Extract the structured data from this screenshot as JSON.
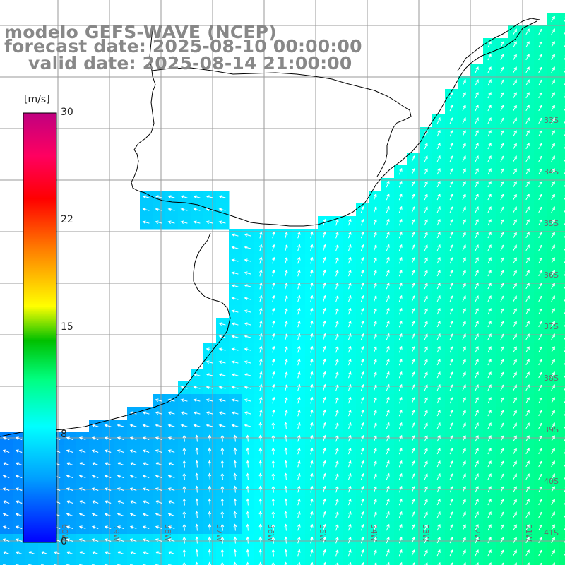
{
  "title": {
    "model": "modelo GEFS-WAVE (NCEP)",
    "forecast": "forecast date: 2025-08-10 00:00:00",
    "valid": "valid date: 2025-08-14 21:00:00"
  },
  "colorbar": {
    "units": "[m/s]",
    "ticks": [
      "30",
      "22",
      "15",
      "8",
      "0"
    ],
    "range": [
      0,
      30
    ],
    "colors": [
      "#0000ff",
      "#00a0ff",
      "#00ffff",
      "#00ff80",
      "#00c000",
      "#ffff00",
      "#ff8000",
      "#ff0000",
      "#ff0060",
      "#c00080"
    ]
  },
  "grid": {
    "lat_labels": [
      "33S",
      "34S",
      "35S",
      "36S",
      "37S",
      "38S",
      "39S",
      "40S",
      "41S"
    ],
    "lon_labels": [
      "60W",
      "59W",
      "58W",
      "57W",
      "56W",
      "55W",
      "54W",
      "53W",
      "52W",
      "51W"
    ]
  },
  "colors": {
    "land": "#ffffff",
    "coastline": "#000000",
    "gridline": "#9a9a9a",
    "arrow": "#ffffff",
    "title": "#888888"
  }
}
